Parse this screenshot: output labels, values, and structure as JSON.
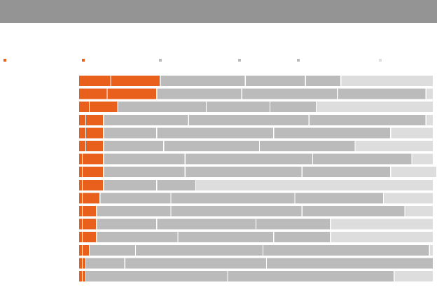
{
  "colors": {
    "header_bar": "#949494",
    "series": [
      "#e8601c",
      "#e8601c",
      "#bbbbbb",
      "#bbbbbb",
      "#bbbbbb",
      "#dddddd"
    ],
    "divider": "#ffffff"
  },
  "chart_data": {
    "type": "bar",
    "orientation": "horizontal",
    "stacked": true,
    "title": "",
    "xlabel": "",
    "ylabel": "",
    "grid": false,
    "legend_position": "top",
    "xlim": [
      0,
      100
    ],
    "categories": [
      "",
      "",
      "",
      "",
      "",
      "",
      "",
      "",
      "",
      "",
      "",
      "",
      "",
      "",
      "",
      ""
    ],
    "series": [
      {
        "values": [
          9,
          8,
          3,
          2,
          2,
          2,
          1,
          1,
          1,
          1,
          1,
          1,
          1,
          1,
          1,
          1
        ]
      },
      {
        "values": [
          14,
          14,
          8,
          5,
          5,
          5,
          6,
          6,
          6,
          5,
          4,
          4,
          4,
          2,
          1,
          1
        ]
      },
      {
        "values": [
          24,
          24,
          25,
          24,
          15,
          17,
          23,
          23,
          15,
          20,
          21,
          17,
          23,
          13,
          11,
          40
        ]
      },
      {
        "values": [
          17,
          27,
          18,
          34,
          33,
          27,
          36,
          33,
          11,
          35,
          37,
          28,
          27,
          36,
          40,
          0
        ]
      },
      {
        "values": [
          10,
          25,
          13,
          33,
          33,
          27,
          28,
          25,
          0,
          25,
          29,
          21,
          16,
          47,
          47,
          47
        ]
      },
      {
        "values": [
          26,
          2,
          33,
          2,
          12,
          22,
          6,
          13,
          67,
          14,
          8,
          29,
          29,
          1,
          0,
          11
        ]
      }
    ]
  }
}
